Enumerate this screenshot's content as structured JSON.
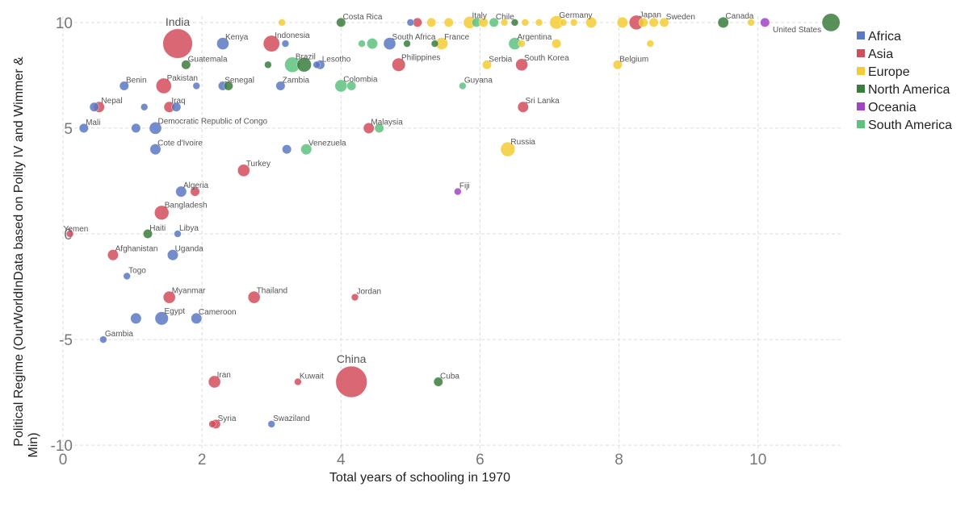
{
  "chart_data": {
    "type": "scatter",
    "xlabel": "Total years of schooling in 1970",
    "ylabel": "Political Regime (OurWorldInData based on Polity IV and Wimmer & Min)",
    "xlim": [
      0,
      11.2
    ],
    "ylim": [
      -10.3,
      10.3
    ],
    "x_ticks": [
      0,
      2,
      4,
      6,
      8,
      10
    ],
    "y_ticks": [
      10,
      5,
      0,
      -5,
      -10
    ],
    "grid": true,
    "legend_position": "right",
    "legend": [
      {
        "name": "Africa",
        "color": "#5b78c2"
      },
      {
        "name": "Asia",
        "color": "#d24e5c"
      },
      {
        "name": "Europe",
        "color": "#f5cc35"
      },
      {
        "name": "North America",
        "color": "#3b7d3c"
      },
      {
        "name": "Oceania",
        "color": "#a044c4"
      },
      {
        "name": "South America",
        "color": "#5dc27e"
      }
    ],
    "points": [
      {
        "label": "India",
        "x": 1.65,
        "y": 9,
        "region": "Asia",
        "size": 30
      },
      {
        "label": "Kenya",
        "x": 2.3,
        "y": 9,
        "region": "Africa",
        "size": 4
      },
      {
        "label": "Indonesia",
        "x": 3.0,
        "y": 9,
        "region": "Asia",
        "size": 8
      },
      {
        "label": "Costa Rica",
        "x": 4.0,
        "y": 10,
        "region": "North America",
        "size": 2
      },
      {
        "label": "South Africa",
        "x": 4.7,
        "y": 9,
        "region": "Africa",
        "size": 4
      },
      {
        "label": "France",
        "x": 5.45,
        "y": 9,
        "region": "Europe",
        "size": 4
      },
      {
        "label": "Italy",
        "x": 5.85,
        "y": 10,
        "region": "Europe",
        "size": 4
      },
      {
        "label": "Chile",
        "x": 6.2,
        "y": 10,
        "region": "South America",
        "size": 2
      },
      {
        "label": "Germany",
        "x": 7.1,
        "y": 10,
        "region": "Europe",
        "size": 5
      },
      {
        "label": "Japan",
        "x": 8.25,
        "y": 10,
        "region": "Asia",
        "size": 6
      },
      {
        "label": "Sweden",
        "x": 8.65,
        "y": 10,
        "region": "Europe",
        "size": 2
      },
      {
        "label": "Canada",
        "x": 9.5,
        "y": 10,
        "region": "North America",
        "size": 3
      },
      {
        "label": "United States",
        "x": 11.05,
        "y": 10,
        "region": "North America",
        "size": 10
      },
      {
        "label": "Guatemala",
        "x": 1.77,
        "y": 8,
        "region": "North America",
        "size": 2
      },
      {
        "label": "Brazil",
        "x": 3.3,
        "y": 8,
        "region": "South America",
        "size": 7
      },
      {
        "label": "Lesotho",
        "x": 3.7,
        "y": 8,
        "region": "Africa",
        "size": 2
      },
      {
        "label": "Philippines",
        "x": 4.83,
        "y": 8,
        "region": "Asia",
        "size": 5
      },
      {
        "label": "Argentina",
        "x": 6.5,
        "y": 9,
        "region": "South America",
        "size": 4
      },
      {
        "label": "Serbia",
        "x": 6.1,
        "y": 8,
        "region": "Europe",
        "size": 2
      },
      {
        "label": "South Korea",
        "x": 6.6,
        "y": 8,
        "region": "Asia",
        "size": 4
      },
      {
        "label": "Belgium",
        "x": 7.98,
        "y": 8,
        "region": "Europe",
        "size": 2
      },
      {
        "label": "Benin",
        "x": 0.88,
        "y": 7,
        "region": "Africa",
        "size": 2
      },
      {
        "label": "Pakistan",
        "x": 1.45,
        "y": 7,
        "region": "Asia",
        "size": 7
      },
      {
        "label": "Senegal",
        "x": 2.3,
        "y": 7,
        "region": "Africa",
        "size": 2
      },
      {
        "label": "Zambia",
        "x": 3.13,
        "y": 7,
        "region": "Africa",
        "size": 2
      },
      {
        "label": "Colombia",
        "x": 4.0,
        "y": 7,
        "region": "South America",
        "size": 4
      },
      {
        "label": "Guyana",
        "x": 5.75,
        "y": 7,
        "region": "South America",
        "size": 1
      },
      {
        "label": "Nepal",
        "x": 0.52,
        "y": 6,
        "region": "Asia",
        "size": 3
      },
      {
        "label": "Iraq",
        "x": 1.53,
        "y": 6,
        "region": "Asia",
        "size": 3
      },
      {
        "label": "Sri Lanka",
        "x": 6.62,
        "y": 6,
        "region": "Asia",
        "size": 3
      },
      {
        "label": "Mali",
        "x": 0.3,
        "y": 5,
        "region": "Africa",
        "size": 2
      },
      {
        "label": "Democratic Republic of Congo",
        "x": 1.33,
        "y": 5,
        "region": "Africa",
        "size": 4
      },
      {
        "label": "Malaysia",
        "x": 4.4,
        "y": 5,
        "region": "Asia",
        "size": 3
      },
      {
        "label": "Cote d'Ivoire",
        "x": 1.33,
        "y": 4,
        "region": "Africa",
        "size": 3
      },
      {
        "label": "Venezuela",
        "x": 3.5,
        "y": 4,
        "region": "South America",
        "size": 3
      },
      {
        "label": "Russia",
        "x": 6.4,
        "y": 4,
        "region": "Europe",
        "size": 6
      },
      {
        "label": "Turkey",
        "x": 2.6,
        "y": 3,
        "region": "Asia",
        "size": 4
      },
      {
        "label": "Algeria",
        "x": 1.7,
        "y": 2,
        "region": "Africa",
        "size": 3
      },
      {
        "label": "Fiji",
        "x": 5.68,
        "y": 2,
        "region": "Oceania",
        "size": 1
      },
      {
        "label": "Bangladesh",
        "x": 1.42,
        "y": 1,
        "region": "Asia",
        "size": 6
      },
      {
        "label": "Yemen",
        "x": 0.1,
        "y": 0,
        "region": "Asia",
        "size": 1
      },
      {
        "label": "Haiti",
        "x": 1.22,
        "y": 0,
        "region": "North America",
        "size": 2
      },
      {
        "label": "Libya",
        "x": 1.65,
        "y": 0,
        "region": "Africa",
        "size": 1
      },
      {
        "label": "Afghanistan",
        "x": 0.72,
        "y": -1,
        "region": "Asia",
        "size": 3
      },
      {
        "label": "Uganda",
        "x": 1.58,
        "y": -1,
        "region": "Africa",
        "size": 3
      },
      {
        "label": "Togo",
        "x": 0.92,
        "y": -2,
        "region": "Africa",
        "size": 1
      },
      {
        "label": "Myanmar",
        "x": 1.53,
        "y": -3,
        "region": "Asia",
        "size": 4
      },
      {
        "label": "Thailand",
        "x": 2.75,
        "y": -3,
        "region": "Asia",
        "size": 4
      },
      {
        "label": "Jordan",
        "x": 4.2,
        "y": -3,
        "region": "Asia",
        "size": 1
      },
      {
        "label": "Egypt",
        "x": 1.42,
        "y": -4,
        "region": "Africa",
        "size": 5
      },
      {
        "label": "Cameroon",
        "x": 1.92,
        "y": -4,
        "region": "Africa",
        "size": 3
      },
      {
        "label": "Gambia",
        "x": 0.58,
        "y": -5,
        "region": "Africa",
        "size": 1
      },
      {
        "label": "Iran",
        "x": 2.18,
        "y": -7,
        "region": "Asia",
        "size": 4
      },
      {
        "label": "Kuwait",
        "x": 3.38,
        "y": -7,
        "region": "Asia",
        "size": 1
      },
      {
        "label": "China",
        "x": 4.15,
        "y": -7,
        "region": "Asia",
        "size": 34
      },
      {
        "label": "Cuba",
        "x": 5.4,
        "y": -7,
        "region": "North America",
        "size": 2
      },
      {
        "label": "Syria",
        "x": 2.2,
        "y": -9,
        "region": "Asia",
        "size": 2
      },
      {
        "label": "Swaziland",
        "x": 3.0,
        "y": -9,
        "region": "Africa",
        "size": 1
      },
      {
        "label": "",
        "x": 3.15,
        "y": 10,
        "region": "Europe",
        "size": 1
      },
      {
        "label": "",
        "x": 5.0,
        "y": 10,
        "region": "Africa",
        "size": 1
      },
      {
        "label": "",
        "x": 5.1,
        "y": 10,
        "region": "Asia",
        "size": 2
      },
      {
        "label": "",
        "x": 5.3,
        "y": 10,
        "region": "Europe",
        "size": 2
      },
      {
        "label": "",
        "x": 5.55,
        "y": 10,
        "region": "Europe",
        "size": 2
      },
      {
        "label": "",
        "x": 5.95,
        "y": 10,
        "region": "South America",
        "size": 2
      },
      {
        "label": "",
        "x": 6.05,
        "y": 10,
        "region": "Europe",
        "size": 2
      },
      {
        "label": "",
        "x": 6.35,
        "y": 10,
        "region": "Europe",
        "size": 1
      },
      {
        "label": "",
        "x": 6.5,
        "y": 10,
        "region": "North America",
        "size": 1
      },
      {
        "label": "",
        "x": 6.65,
        "y": 10,
        "region": "Europe",
        "size": 1
      },
      {
        "label": "",
        "x": 6.85,
        "y": 10,
        "region": "Europe",
        "size": 1
      },
      {
        "label": "",
        "x": 7.2,
        "y": 10,
        "region": "Europe",
        "size": 1
      },
      {
        "label": "",
        "x": 7.35,
        "y": 10,
        "region": "Europe",
        "size": 1
      },
      {
        "label": "",
        "x": 7.6,
        "y": 10,
        "region": "Europe",
        "size": 3
      },
      {
        "label": "",
        "x": 8.05,
        "y": 10,
        "region": "Europe",
        "size": 3
      },
      {
        "label": "",
        "x": 8.35,
        "y": 10,
        "region": "Europe",
        "size": 2
      },
      {
        "label": "",
        "x": 8.5,
        "y": 10,
        "region": "Europe",
        "size": 2
      },
      {
        "label": "",
        "x": 9.9,
        "y": 10,
        "region": "Europe",
        "size": 1
      },
      {
        "label": "",
        "x": 10.1,
        "y": 10,
        "region": "Oceania",
        "size": 2
      },
      {
        "label": "",
        "x": 3.2,
        "y": 9,
        "region": "Africa",
        "size": 1
      },
      {
        "label": "",
        "x": 4.3,
        "y": 9,
        "region": "South America",
        "size": 1
      },
      {
        "label": "",
        "x": 4.45,
        "y": 9,
        "region": "South America",
        "size": 3
      },
      {
        "label": "",
        "x": 4.95,
        "y": 9,
        "region": "North America",
        "size": 1
      },
      {
        "label": "",
        "x": 5.35,
        "y": 9,
        "region": "North America",
        "size": 1
      },
      {
        "label": "",
        "x": 6.6,
        "y": 9,
        "region": "Europe",
        "size": 1
      },
      {
        "label": "",
        "x": 7.1,
        "y": 9,
        "region": "Europe",
        "size": 2
      },
      {
        "label": "",
        "x": 8.45,
        "y": 9,
        "region": "Europe",
        "size": 1
      },
      {
        "label": "",
        "x": 2.95,
        "y": 8,
        "region": "North America",
        "size": 1
      },
      {
        "label": "",
        "x": 3.47,
        "y": 8,
        "region": "North America",
        "size": 6
      },
      {
        "label": "",
        "x": 3.65,
        "y": 8,
        "region": "Africa",
        "size": 1
      },
      {
        "label": "",
        "x": 2.38,
        "y": 7,
        "region": "North America",
        "size": 2
      },
      {
        "label": "",
        "x": 1.92,
        "y": 7,
        "region": "Africa",
        "size": 1
      },
      {
        "label": "",
        "x": 4.15,
        "y": 7,
        "region": "South America",
        "size": 2
      },
      {
        "label": "",
        "x": 0.45,
        "y": 6,
        "region": "Africa",
        "size": 2
      },
      {
        "label": "",
        "x": 1.17,
        "y": 6,
        "region": "Africa",
        "size": 1
      },
      {
        "label": "",
        "x": 1.63,
        "y": 6,
        "region": "Africa",
        "size": 2
      },
      {
        "label": "",
        "x": 1.05,
        "y": 5,
        "region": "Africa",
        "size": 2
      },
      {
        "label": "",
        "x": 4.55,
        "y": 5,
        "region": "South America",
        "size": 2
      },
      {
        "label": "",
        "x": 3.22,
        "y": 4,
        "region": "Africa",
        "size": 2
      },
      {
        "label": "",
        "x": 1.9,
        "y": 2,
        "region": "Asia",
        "size": 2
      },
      {
        "label": "",
        "x": 1.05,
        "y": -4,
        "region": "Africa",
        "size": 3
      },
      {
        "label": "",
        "x": 2.15,
        "y": -9,
        "region": "Asia",
        "size": 1
      }
    ]
  }
}
